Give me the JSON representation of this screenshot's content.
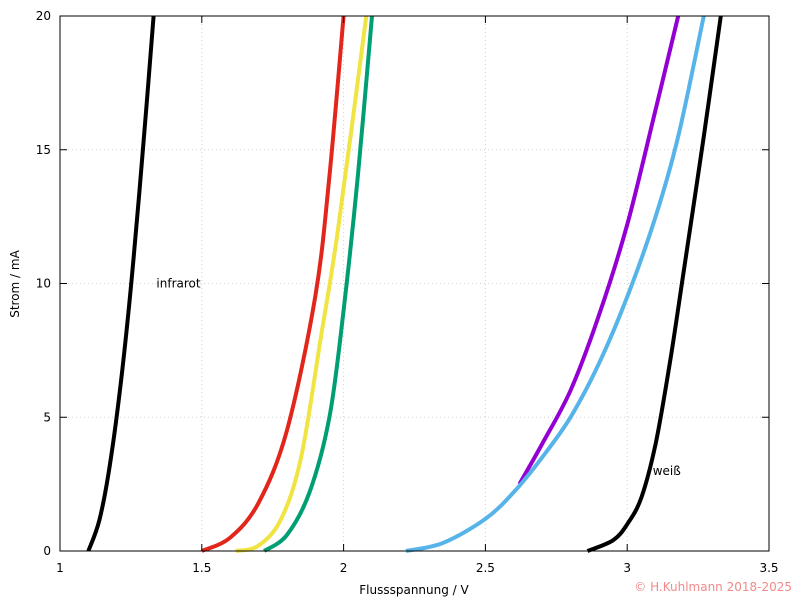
{
  "chart_data": {
    "type": "line",
    "title": "",
    "xlabel": "Flussspannung / V",
    "ylabel": "Strom / mA",
    "xlim": [
      1,
      3.5
    ],
    "ylim": [
      0,
      20
    ],
    "x_ticks": [
      "1",
      "1.5",
      "2",
      "2.5",
      "3",
      "3.5"
    ],
    "y_ticks": [
      "0",
      "5",
      "10",
      "15",
      "20"
    ],
    "grid": true,
    "grid_style": "dotted",
    "series": [
      {
        "color": "#000000",
        "x": [
          1.1,
          1.14,
          1.18,
          1.22,
          1.26,
          1.3,
          1.33
        ],
        "y": [
          0,
          1.2,
          3.5,
          6.8,
          11.0,
          16.0,
          20.0
        ]
      },
      {
        "color": "#e2261b",
        "x": [
          1.5,
          1.6,
          1.7,
          1.8,
          1.9,
          1.95,
          2.0
        ],
        "y": [
          0,
          0.5,
          1.8,
          4.5,
          9.5,
          14.0,
          20.0
        ]
      },
      {
        "color": "#f0e442",
        "x": [
          1.62,
          1.7,
          1.78,
          1.85,
          1.92,
          1.98,
          2.08
        ],
        "y": [
          0,
          0.2,
          1.2,
          3.5,
          8.0,
          12.0,
          20.0
        ]
      },
      {
        "color": "#009e73",
        "x": [
          1.72,
          1.8,
          1.88,
          1.95,
          2.0,
          2.05,
          2.1
        ],
        "y": [
          0,
          0.6,
          2.2,
          5.0,
          9.0,
          14.0,
          20.0
        ]
      },
      {
        "color": "#9400d3",
        "x": [
          2.62,
          2.7,
          2.8,
          2.9,
          3.0,
          3.1,
          3.18
        ],
        "y": [
          2.5,
          4.0,
          6.0,
          8.8,
          12.2,
          16.5,
          20.0
        ]
      },
      {
        "color": "#56b4e9",
        "x": [
          2.22,
          2.35,
          2.5,
          2.6,
          2.7,
          2.8,
          2.9,
          3.0,
          3.1,
          3.18,
          3.27
        ],
        "y": [
          0,
          0.3,
          1.2,
          2.2,
          3.5,
          5.0,
          7.0,
          9.5,
          12.5,
          15.5,
          20.0
        ]
      },
      {
        "color": "#000000",
        "x": [
          2.86,
          2.95,
          3.0,
          3.05,
          3.1,
          3.15,
          3.2,
          3.27,
          3.33
        ],
        "y": [
          0,
          0.4,
          1.0,
          2.0,
          4.0,
          7.0,
          10.5,
          15.5,
          20.0
        ]
      }
    ],
    "annotations": [
      {
        "text": "infrarot",
        "x": 1.34,
        "y": 10
      },
      {
        "text": "weiß",
        "x": 3.09,
        "y": 3
      }
    ]
  },
  "copyright": "© H.Kuhlmann 2018-2025"
}
